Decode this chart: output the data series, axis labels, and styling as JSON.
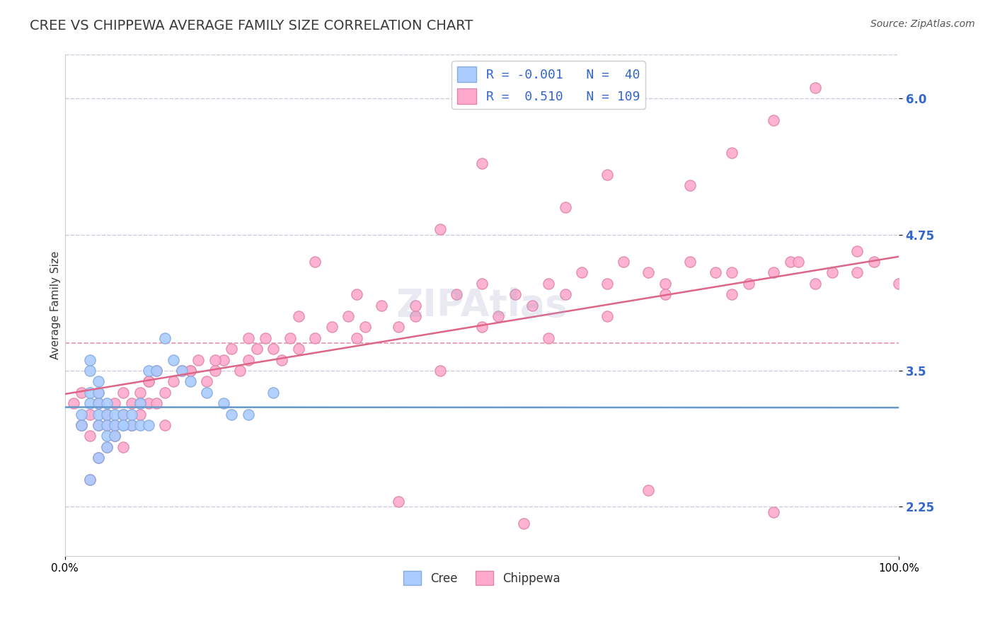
{
  "title": "CREE VS CHIPPEWA AVERAGE FAMILY SIZE CORRELATION CHART",
  "source_text": "Source: ZipAtlas.com",
  "ylabel": "Average Family Size",
  "xlim": [
    0,
    1
  ],
  "ylim": [
    1.8,
    6.4
  ],
  "yticks": [
    2.25,
    3.5,
    4.75,
    6.0
  ],
  "xtick_labels": [
    "0.0%",
    "100.0%"
  ],
  "title_color": "#3a3a3a",
  "axis_color": "#3a3a3a",
  "title_fontsize": 14,
  "label_fontsize": 11,
  "tick_fontsize": 11,
  "source_fontsize": 10,
  "legend_color": "#3366cc",
  "cree_color": "#aaccff",
  "chippewa_color": "#ffaacc",
  "cree_edge_color": "#88aadd",
  "chippewa_edge_color": "#dd88aa",
  "cree_line_color": "#6699cc",
  "chippewa_line_color": "#dd6688",
  "background_color": "#ffffff",
  "grid_color": "#ccccdd",
  "cree_R": -0.001,
  "cree_N": 40,
  "chippewa_R": 0.51,
  "chippewa_N": 109,
  "cree_x": [
    0.02,
    0.02,
    0.03,
    0.03,
    0.03,
    0.03,
    0.04,
    0.04,
    0.04,
    0.04,
    0.04,
    0.05,
    0.05,
    0.05,
    0.05,
    0.06,
    0.06,
    0.07,
    0.07,
    0.08,
    0.08,
    0.09,
    0.1,
    0.11,
    0.12,
    0.13,
    0.14,
    0.15,
    0.17,
    0.19,
    0.2,
    0.22,
    0.03,
    0.04,
    0.05,
    0.06,
    0.07,
    0.09,
    0.25,
    0.1
  ],
  "cree_y": [
    3.0,
    3.1,
    3.2,
    3.3,
    3.5,
    3.6,
    3.0,
    3.1,
    3.2,
    3.3,
    3.4,
    2.9,
    3.0,
    3.1,
    3.2,
    3.0,
    3.1,
    3.0,
    3.1,
    3.0,
    3.1,
    3.0,
    3.5,
    3.5,
    3.8,
    3.6,
    3.5,
    3.4,
    3.3,
    3.2,
    3.1,
    3.1,
    2.5,
    2.7,
    2.8,
    2.9,
    3.0,
    3.2,
    3.3,
    3.0
  ],
  "chippewa_x": [
    0.01,
    0.02,
    0.02,
    0.03,
    0.03,
    0.04,
    0.04,
    0.04,
    0.05,
    0.05,
    0.05,
    0.06,
    0.06,
    0.06,
    0.07,
    0.07,
    0.08,
    0.08,
    0.09,
    0.09,
    0.1,
    0.1,
    0.11,
    0.11,
    0.12,
    0.13,
    0.14,
    0.15,
    0.16,
    0.17,
    0.18,
    0.19,
    0.2,
    0.21,
    0.22,
    0.23,
    0.24,
    0.25,
    0.26,
    0.27,
    0.28,
    0.3,
    0.32,
    0.34,
    0.35,
    0.36,
    0.38,
    0.4,
    0.42,
    0.45,
    0.47,
    0.5,
    0.52,
    0.54,
    0.56,
    0.58,
    0.6,
    0.62,
    0.65,
    0.67,
    0.7,
    0.72,
    0.75,
    0.78,
    0.8,
    0.82,
    0.85,
    0.87,
    0.9,
    0.92,
    0.95,
    0.97,
    1.0,
    0.02,
    0.03,
    0.04,
    0.05,
    0.06,
    0.07,
    0.08,
    0.09,
    0.1,
    0.12,
    0.15,
    0.18,
    0.22,
    0.28,
    0.35,
    0.42,
    0.5,
    0.58,
    0.65,
    0.72,
    0.8,
    0.88,
    0.95,
    0.4,
    0.55,
    0.7,
    0.85,
    0.3,
    0.45,
    0.6,
    0.75,
    0.85,
    0.9,
    0.5,
    0.65,
    0.8
  ],
  "chippewa_y": [
    3.2,
    3.0,
    3.3,
    2.9,
    3.1,
    3.0,
    3.2,
    3.3,
    2.8,
    3.0,
    3.1,
    2.9,
    3.0,
    3.2,
    3.1,
    3.3,
    3.0,
    3.2,
    3.1,
    3.3,
    3.2,
    3.4,
    3.5,
    3.2,
    3.3,
    3.4,
    3.5,
    3.5,
    3.6,
    3.4,
    3.5,
    3.6,
    3.7,
    3.5,
    3.6,
    3.7,
    3.8,
    3.7,
    3.6,
    3.8,
    3.7,
    3.8,
    3.9,
    4.0,
    3.8,
    3.9,
    4.1,
    3.9,
    4.0,
    3.5,
    4.2,
    4.3,
    4.0,
    4.2,
    4.1,
    4.3,
    4.2,
    4.4,
    4.3,
    4.5,
    4.4,
    4.3,
    4.5,
    4.4,
    4.2,
    4.3,
    4.4,
    4.5,
    4.3,
    4.4,
    4.4,
    4.5,
    4.3,
    3.0,
    2.5,
    2.7,
    3.1,
    2.9,
    2.8,
    3.0,
    3.2,
    3.4,
    3.0,
    3.5,
    3.6,
    3.8,
    4.0,
    4.2,
    4.1,
    3.9,
    3.8,
    4.0,
    4.2,
    4.4,
    4.5,
    4.6,
    2.3,
    2.1,
    2.4,
    2.2,
    4.5,
    4.8,
    5.0,
    5.2,
    5.8,
    6.1,
    5.4,
    5.3,
    5.5
  ]
}
